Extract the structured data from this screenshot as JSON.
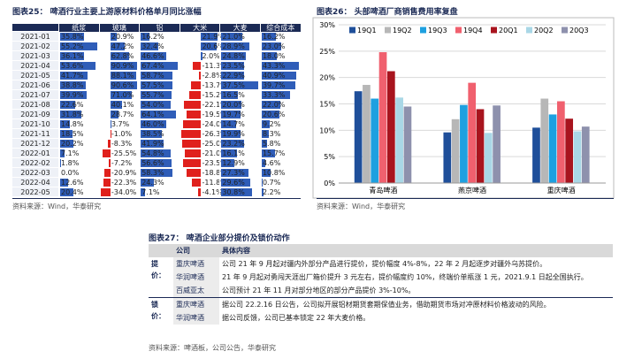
{
  "fig25": {
    "title": "图表25：  啤酒行业主要上游原材料价格单月同比涨幅",
    "columns": [
      "纸浆",
      "玻璃",
      "铝",
      "大米",
      "大麦",
      "综合成本"
    ],
    "rows": [
      {
        "month": "2021-01",
        "cells": [
          "35.8%",
          "20.9%",
          "16.2%",
          "21.9%",
          "21.0%",
          "16.2%"
        ]
      },
      {
        "month": "2021-02",
        "cells": [
          "55.2%",
          "47.2%",
          "32.4%",
          "20.6%",
          "28.9%",
          "23.0%"
        ]
      },
      {
        "month": "2021-03",
        "cells": [
          "36.1%",
          "62.8%",
          "46.6%",
          "2.0%",
          "24.8%",
          "18.0%"
        ]
      },
      {
        "month": "2021-04",
        "cells": [
          "53.6%",
          "90.9%",
          "67.4%",
          "-11.3%",
          "23.5%",
          "43.3%"
        ]
      },
      {
        "month": "2021-05",
        "cells": [
          "41.7%",
          "88.1%",
          "58.7%",
          "-2.8%",
          "22.9%",
          "40.9%"
        ]
      },
      {
        "month": "2021-06",
        "cells": [
          "38.8%",
          "90.6%",
          "57.5%",
          "-13.7%",
          "37.5%",
          "39.7%"
        ]
      },
      {
        "month": "2021-07",
        "cells": [
          "39.9%",
          "71.0%",
          "55.7%",
          "-15.2%",
          "16.5%",
          "33.3%"
        ]
      },
      {
        "month": "2021-08",
        "cells": [
          "22.6%",
          "40.1%",
          "54.0%",
          "-22.1%",
          "20.0%",
          "22.0%"
        ]
      },
      {
        "month": "2021-09",
        "cells": [
          "31.8%",
          "28.7%",
          "64.1%",
          "-19.5%",
          "19.7%",
          "20.6%"
        ]
      },
      {
        "month": "2021-10",
        "cells": [
          "14.8%",
          "3.7%",
          "46.0%",
          "-24.0%",
          "14.7%",
          "9.2%"
        ]
      },
      {
        "month": "2021-11",
        "cells": [
          "18.5%",
          "-1.0%",
          "38.5%",
          "-26.3%",
          "19.9%",
          "8.3%"
        ]
      },
      {
        "month": "2021-12",
        "cells": [
          "20.2%",
          "-8.3%",
          "41.9%",
          "-25.0%",
          "23.2%",
          "5.8%"
        ]
      },
      {
        "month": "2022-01",
        "cells": [
          "7.1%",
          "-25.5%",
          "54.8%",
          "-21.0%",
          "16.1%",
          "15.7%"
        ]
      },
      {
        "month": "2022-02",
        "cells": [
          "1.8%",
          "-7.2%",
          "56.6%",
          "-23.5%",
          "12.9%",
          "4.6%"
        ]
      },
      {
        "month": "2022-03",
        "cells": [
          "0.0%",
          "-20.9%",
          "58.3%",
          "-18.8%",
          "27.3%",
          "10.8%"
        ]
      },
      {
        "month": "2022-04",
        "cells": [
          "12.6%",
          "-22.3%",
          "24.3%",
          "-11.8%",
          "29.6%",
          "0.7%"
        ]
      },
      {
        "month": "2022-05",
        "cells": [
          "20.4%",
          "-34.0%",
          "7.1%",
          "-4.1%",
          "30.8%",
          "2.2%"
        ]
      }
    ],
    "source": "资料来源：Wind，华泰研究"
  },
  "chart_data": {
    "type": "bar",
    "title": "图表26：  头部啤酒厂商销售费用率复盘",
    "categories": [
      "青岛啤酒",
      "燕京啤酒",
      "重庆啤酒"
    ],
    "series": [
      {
        "name": "19Q1",
        "color": "#1f4f9a",
        "values": [
          17.4,
          9.6,
          10.5
        ]
      },
      {
        "name": "19Q2",
        "color": "#b7b7b7",
        "values": [
          18.6,
          12.1,
          16.0
        ]
      },
      {
        "name": "19Q3",
        "color": "#1ea0e0",
        "values": [
          16.0,
          14.8,
          13.0
        ]
      },
      {
        "name": "19Q4",
        "color": "#f0606e",
        "values": [
          24.8,
          19.0,
          15.5
        ]
      },
      {
        "name": "20Q1",
        "color": "#a8141e",
        "values": [
          21.2,
          14.0,
          12.2
        ]
      },
      {
        "name": "20Q2",
        "color": "#a9d7e6",
        "values": [
          16.2,
          9.5,
          9.8
        ]
      },
      {
        "name": "20Q3",
        "color": "#8e91ad",
        "values": [
          14.5,
          14.7,
          10.7
        ]
      }
    ],
    "ylim": [
      0,
      30
    ],
    "yticks": [
      {
        "value": 0,
        "label": "0%"
      },
      {
        "value": 5,
        "label": "5%"
      },
      {
        "value": 10,
        "label": "10%"
      },
      {
        "value": 15,
        "label": "15%"
      },
      {
        "value": 20,
        "label": "20%"
      },
      {
        "value": 25,
        "label": "25%"
      },
      {
        "value": 30,
        "label": "30%"
      }
    ],
    "grid": true,
    "legend": "top",
    "source": "资料来源：Wind，华泰研究"
  },
  "fig27": {
    "title": "图表27：  啤酒企业部分提价及锁价动作",
    "header": [
      "公司",
      "具体内容"
    ],
    "groups": [
      {
        "label": "提价：",
        "rows": [
          [
            "重庆啤酒",
            "公司 21 年 9 月起对疆内外部分产品进行提价，提价幅度 4%-8%，22 年 2 月起逐步对疆外乌苏提价。"
          ],
          [
            "华润啤酒",
            "21 年 9 月起对勇闯天涯出厂箱价提升 3 元左右，提价幅度约 10%，终端价单瓶涨 1 元，2021.9.1 日起全国执行。"
          ],
          [
            "百威亚太",
            "公司预计 21 年 11 月对部分地区的部分产品提价 3%-10%。"
          ]
        ]
      },
      {
        "label": "锁价：",
        "rows": [
          [
            "重庆啤酒",
            "据公司 22.2.16 日公告，公司拟开展铝材期货套期保值业务，借助期货市场对冲原材料价格波动的风险。"
          ],
          [
            "华润啤酒",
            "据公司反馈，公司已基本锁定 22 年大麦价格。"
          ]
        ]
      }
    ],
    "source": "资料来源：啤酒板，公司公告，华泰研究"
  }
}
